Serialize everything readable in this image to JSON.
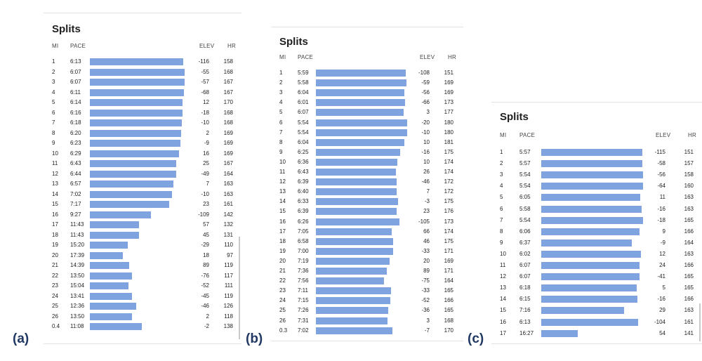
{
  "panels": [
    {
      "label": "(a)",
      "title": "Splits",
      "headers": {
        "mi": "MI",
        "pace": "PACE",
        "elev": "ELEV",
        "hr": "HR"
      },
      "rows": [
        {
          "mi": "1",
          "pace": "6:13",
          "elev": "-116",
          "hr": "158"
        },
        {
          "mi": "2",
          "pace": "6:07",
          "elev": "-55",
          "hr": "168"
        },
        {
          "mi": "3",
          "pace": "6:07",
          "elev": "-57",
          "hr": "167"
        },
        {
          "mi": "4",
          "pace": "6:11",
          "elev": "-68",
          "hr": "167"
        },
        {
          "mi": "5",
          "pace": "6:14",
          "elev": "12",
          "hr": "170"
        },
        {
          "mi": "6",
          "pace": "6:16",
          "elev": "-18",
          "hr": "168"
        },
        {
          "mi": "7",
          "pace": "6:18",
          "elev": "-10",
          "hr": "168"
        },
        {
          "mi": "8",
          "pace": "6:20",
          "elev": "2",
          "hr": "169"
        },
        {
          "mi": "9",
          "pace": "6:23",
          "elev": "-9",
          "hr": "169"
        },
        {
          "mi": "10",
          "pace": "6:29",
          "elev": "16",
          "hr": "169"
        },
        {
          "mi": "11",
          "pace": "6:43",
          "elev": "25",
          "hr": "167"
        },
        {
          "mi": "12",
          "pace": "6:44",
          "elev": "-49",
          "hr": "164"
        },
        {
          "mi": "13",
          "pace": "6:57",
          "elev": "7",
          "hr": "163"
        },
        {
          "mi": "14",
          "pace": "7:02",
          "elev": "-10",
          "hr": "163"
        },
        {
          "mi": "15",
          "pace": "7:17",
          "elev": "23",
          "hr": "161"
        },
        {
          "mi": "16",
          "pace": "9:27",
          "elev": "-109",
          "hr": "142"
        },
        {
          "mi": "17",
          "pace": "11:43",
          "elev": "57",
          "hr": "132"
        },
        {
          "mi": "18",
          "pace": "11:43",
          "elev": "45",
          "hr": "131"
        },
        {
          "mi": "19",
          "pace": "15:20",
          "elev": "-29",
          "hr": "110"
        },
        {
          "mi": "20",
          "pace": "17:39",
          "elev": "18",
          "hr": "97"
        },
        {
          "mi": "21",
          "pace": "14:39",
          "elev": "89",
          "hr": "119"
        },
        {
          "mi": "22",
          "pace": "13:50",
          "elev": "-76",
          "hr": "117"
        },
        {
          "mi": "23",
          "pace": "15:04",
          "elev": "-52",
          "hr": "111"
        },
        {
          "mi": "24",
          "pace": "13:41",
          "elev": "-45",
          "hr": "119"
        },
        {
          "mi": "25",
          "pace": "12:36",
          "elev": "-46",
          "hr": "126"
        },
        {
          "mi": "26",
          "pace": "13:50",
          "elev": "2",
          "hr": "118"
        },
        {
          "mi": "0.4",
          "pace": "11:08",
          "elev": "-2",
          "hr": "138"
        }
      ]
    },
    {
      "label": "(b)",
      "title": "Splits",
      "headers": {
        "mi": "MI",
        "pace": "PACE",
        "elev": "ELEV",
        "hr": "HR"
      },
      "rows": [
        {
          "mi": "1",
          "pace": "5:59",
          "elev": "-108",
          "hr": "151"
        },
        {
          "mi": "2",
          "pace": "5:58",
          "elev": "-59",
          "hr": "169"
        },
        {
          "mi": "3",
          "pace": "6:04",
          "elev": "-56",
          "hr": "169"
        },
        {
          "mi": "4",
          "pace": "6:01",
          "elev": "-66",
          "hr": "173"
        },
        {
          "mi": "5",
          "pace": "6:07",
          "elev": "3",
          "hr": "177"
        },
        {
          "mi": "6",
          "pace": "5:54",
          "elev": "-20",
          "hr": "180"
        },
        {
          "mi": "7",
          "pace": "5:54",
          "elev": "-10",
          "hr": "180"
        },
        {
          "mi": "8",
          "pace": "6:04",
          "elev": "10",
          "hr": "181"
        },
        {
          "mi": "9",
          "pace": "6:25",
          "elev": "-16",
          "hr": "175"
        },
        {
          "mi": "10",
          "pace": "6:36",
          "elev": "10",
          "hr": "174"
        },
        {
          "mi": "11",
          "pace": "6:43",
          "elev": "26",
          "hr": "174"
        },
        {
          "mi": "12",
          "pace": "6:39",
          "elev": "-46",
          "hr": "172"
        },
        {
          "mi": "13",
          "pace": "6:40",
          "elev": "7",
          "hr": "172"
        },
        {
          "mi": "14",
          "pace": "6:33",
          "elev": "-3",
          "hr": "175"
        },
        {
          "mi": "15",
          "pace": "6:39",
          "elev": "23",
          "hr": "176"
        },
        {
          "mi": "16",
          "pace": "6:26",
          "elev": "-105",
          "hr": "173"
        },
        {
          "mi": "17",
          "pace": "7:05",
          "elev": "66",
          "hr": "174"
        },
        {
          "mi": "18",
          "pace": "6:58",
          "elev": "46",
          "hr": "175"
        },
        {
          "mi": "19",
          "pace": "7:00",
          "elev": "-33",
          "hr": "171"
        },
        {
          "mi": "20",
          "pace": "7:19",
          "elev": "20",
          "hr": "169"
        },
        {
          "mi": "21",
          "pace": "7:36",
          "elev": "89",
          "hr": "171"
        },
        {
          "mi": "22",
          "pace": "7:56",
          "elev": "-75",
          "hr": "164"
        },
        {
          "mi": "23",
          "pace": "7:11",
          "elev": "-33",
          "hr": "165"
        },
        {
          "mi": "24",
          "pace": "7:15",
          "elev": "-52",
          "hr": "166"
        },
        {
          "mi": "25",
          "pace": "7:26",
          "elev": "-36",
          "hr": "165"
        },
        {
          "mi": "26",
          "pace": "7:31",
          "elev": "3",
          "hr": "168"
        },
        {
          "mi": "0.3",
          "pace": "7:02",
          "elev": "-7",
          "hr": "170"
        }
      ]
    },
    {
      "label": "(c)",
      "title": "Splits",
      "headers": {
        "mi": "MI",
        "pace": "PACE",
        "elev": "ELEV",
        "hr": "HR"
      },
      "rows": [
        {
          "mi": "1",
          "pace": "5:57",
          "elev": "-115",
          "hr": "151"
        },
        {
          "mi": "2",
          "pace": "5:57",
          "elev": "-58",
          "hr": "157"
        },
        {
          "mi": "3",
          "pace": "5:54",
          "elev": "-56",
          "hr": "158"
        },
        {
          "mi": "4",
          "pace": "5:54",
          "elev": "-64",
          "hr": "160"
        },
        {
          "mi": "5",
          "pace": "6:05",
          "elev": "11",
          "hr": "163"
        },
        {
          "mi": "6",
          "pace": "5:58",
          "elev": "-16",
          "hr": "163"
        },
        {
          "mi": "7",
          "pace": "5:54",
          "elev": "-18",
          "hr": "165"
        },
        {
          "mi": "8",
          "pace": "6:06",
          "elev": "9",
          "hr": "166"
        },
        {
          "mi": "9",
          "pace": "6:37",
          "elev": "-9",
          "hr": "164"
        },
        {
          "mi": "10",
          "pace": "6:02",
          "elev": "12",
          "hr": "163"
        },
        {
          "mi": "11",
          "pace": "6:07",
          "elev": "24",
          "hr": "166"
        },
        {
          "mi": "12",
          "pace": "6:07",
          "elev": "-41",
          "hr": "165"
        },
        {
          "mi": "13",
          "pace": "6:18",
          "elev": "5",
          "hr": "165"
        },
        {
          "mi": "14",
          "pace": "6:15",
          "elev": "-16",
          "hr": "166"
        },
        {
          "mi": "15",
          "pace": "7:16",
          "elev": "29",
          "hr": "163"
        },
        {
          "mi": "16",
          "pace": "6:13",
          "elev": "-104",
          "hr": "161"
        },
        {
          "mi": "17",
          "pace": "16:27",
          "elev": "54",
          "hr": "141"
        }
      ]
    }
  ],
  "bar_color": "#7fa3df"
}
